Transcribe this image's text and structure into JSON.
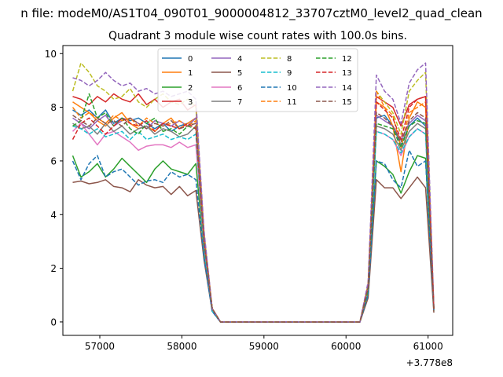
{
  "suptitle": "n file: modeM0/AS1T04_090T01_9000004812_33707cztM0_level2_quad_clean",
  "chart_data": {
    "type": "line",
    "title": "Quadrant 3 module wise count rates with 100.0s bins.",
    "xlabel": "",
    "ylabel": "",
    "x_offset_label": "+3.778e8",
    "xlim": [
      56550,
      61300
    ],
    "ylim": [
      -0.5,
      10.3
    ],
    "xticks": [
      57000,
      58000,
      59000,
      60000,
      61000
    ],
    "xtick_labels": [
      "57000",
      "58000",
      "59000",
      "60000",
      "61000"
    ],
    "yticks": [
      0,
      2,
      4,
      6,
      8,
      10
    ],
    "ytick_labels": [
      "0",
      "2",
      "4",
      "6",
      "8",
      "10"
    ],
    "grid": false,
    "legend": {
      "placement": "top-center",
      "ncol": 4
    },
    "x": [
      56670,
      56770,
      56870,
      56970,
      57070,
      57170,
      57270,
      57370,
      57470,
      57570,
      57670,
      57770,
      57870,
      57970,
      58070,
      58170,
      58270,
      58370,
      58470,
      58570,
      58670,
      58770,
      58870,
      58970,
      59070,
      59170,
      59270,
      59370,
      59470,
      59570,
      59670,
      59770,
      59870,
      59970,
      60070,
      60170,
      60270,
      60370,
      60470,
      60570,
      60670,
      60770,
      60870,
      60970,
      61070
    ],
    "series": [
      {
        "name": "0",
        "color": "#1f77b4",
        "dash": "solid",
        "values": [
          7.9,
          7.7,
          7.9,
          7.6,
          7.9,
          7.4,
          7.6,
          7.5,
          7.6,
          7.4,
          7.2,
          7.4,
          7.1,
          7.3,
          7.4,
          7.6,
          3.0,
          0.5,
          0.0,
          0.0,
          0.0,
          0.0,
          0.0,
          0.0,
          0.0,
          0.0,
          0.0,
          0.0,
          0.0,
          0.0,
          0.0,
          0.0,
          0.0,
          0.0,
          0.0,
          0.0,
          1.3,
          7.6,
          7.7,
          7.3,
          6.6,
          7.3,
          7.6,
          7.3,
          0.5
        ]
      },
      {
        "name": "1",
        "color": "#ff7f0e",
        "dash": "solid",
        "values": [
          8.2,
          8.0,
          7.8,
          7.5,
          7.3,
          7.6,
          7.8,
          7.4,
          7.2,
          7.3,
          7.1,
          7.4,
          7.6,
          7.2,
          7.4,
          7.6,
          3.1,
          0.5,
          0.0,
          0.0,
          0.0,
          0.0,
          0.0,
          0.0,
          0.0,
          0.0,
          0.0,
          0.0,
          0.0,
          0.0,
          0.0,
          0.0,
          0.0,
          0.0,
          0.0,
          0.0,
          1.3,
          8.2,
          8.0,
          7.3,
          5.6,
          7.6,
          8.2,
          8.0,
          0.5
        ]
      },
      {
        "name": "2",
        "color": "#2ca02c",
        "dash": "solid",
        "values": [
          6.2,
          5.4,
          5.6,
          5.9,
          5.4,
          5.7,
          6.1,
          5.8,
          5.5,
          5.2,
          5.7,
          6.0,
          5.7,
          5.6,
          5.5,
          5.9,
          2.6,
          0.4,
          0.0,
          0.0,
          0.0,
          0.0,
          0.0,
          0.0,
          0.0,
          0.0,
          0.0,
          0.0,
          0.0,
          0.0,
          0.0,
          0.0,
          0.0,
          0.0,
          0.0,
          0.0,
          1.1,
          6.0,
          5.8,
          5.5,
          4.8,
          5.6,
          6.2,
          6.1,
          0.4
        ]
      },
      {
        "name": "3",
        "color": "#d62728",
        "dash": "solid",
        "values": [
          8.4,
          8.3,
          8.1,
          8.4,
          8.2,
          8.5,
          8.3,
          8.2,
          8.5,
          8.1,
          8.3,
          8.0,
          8.2,
          8.3,
          7.9,
          8.1,
          3.3,
          0.5,
          0.0,
          0.0,
          0.0,
          0.0,
          0.0,
          0.0,
          0.0,
          0.0,
          0.0,
          0.0,
          0.0,
          0.0,
          0.0,
          0.0,
          0.0,
          0.0,
          0.0,
          0.0,
          1.4,
          8.4,
          8.2,
          8.0,
          7.3,
          8.1,
          8.3,
          8.4,
          0.5
        ]
      },
      {
        "name": "4",
        "color": "#9467bd",
        "dash": "solid",
        "values": [
          7.6,
          7.4,
          7.2,
          7.5,
          7.7,
          7.3,
          7.5,
          7.6,
          7.4,
          7.2,
          7.5,
          7.4,
          7.3,
          7.5,
          7.3,
          7.6,
          3.0,
          0.5,
          0.0,
          0.0,
          0.0,
          0.0,
          0.0,
          0.0,
          0.0,
          0.0,
          0.0,
          0.0,
          0.0,
          0.0,
          0.0,
          0.0,
          0.0,
          0.0,
          0.0,
          0.0,
          1.3,
          7.7,
          7.5,
          7.3,
          6.8,
          7.4,
          7.7,
          7.5,
          0.5
        ]
      },
      {
        "name": "5",
        "color": "#8c564b",
        "dash": "solid",
        "values": [
          5.2,
          5.25,
          5.15,
          5.2,
          5.3,
          5.05,
          5.0,
          4.85,
          5.3,
          5.1,
          5.0,
          5.05,
          4.75,
          5.05,
          4.7,
          4.9,
          2.3,
          0.4,
          0.0,
          0.0,
          0.0,
          0.0,
          0.0,
          0.0,
          0.0,
          0.0,
          0.0,
          0.0,
          0.0,
          0.0,
          0.0,
          0.0,
          0.0,
          0.0,
          0.0,
          0.0,
          0.9,
          5.3,
          5.0,
          5.0,
          4.6,
          5.0,
          5.4,
          5.0,
          0.35
        ]
      },
      {
        "name": "6",
        "color": "#e377c2",
        "dash": "solid",
        "values": [
          7.1,
          7.4,
          7.0,
          6.6,
          7.0,
          7.1,
          6.9,
          6.7,
          6.4,
          6.55,
          6.6,
          6.6,
          6.5,
          6.7,
          6.5,
          6.6,
          2.8,
          0.4,
          0.0,
          0.0,
          0.0,
          0.0,
          0.0,
          0.0,
          0.0,
          0.0,
          0.0,
          0.0,
          0.0,
          0.0,
          0.0,
          0.0,
          0.0,
          0.0,
          0.0,
          0.0,
          1.2,
          7.1,
          7.0,
          6.8,
          6.2,
          6.9,
          7.2,
          7.0,
          0.45
        ]
      },
      {
        "name": "7",
        "color": "#7f7f7f",
        "dash": "solid",
        "values": [
          7.4,
          7.2,
          7.3,
          7.0,
          7.4,
          7.1,
          7.3,
          7.0,
          7.2,
          7.3,
          7.0,
          7.2,
          7.1,
          6.9,
          7.0,
          7.3,
          2.9,
          0.5,
          0.0,
          0.0,
          0.0,
          0.0,
          0.0,
          0.0,
          0.0,
          0.0,
          0.0,
          0.0,
          0.0,
          0.0,
          0.0,
          0.0,
          0.0,
          0.0,
          0.0,
          0.0,
          1.2,
          7.3,
          7.2,
          7.0,
          6.4,
          7.1,
          7.4,
          7.2,
          0.45
        ]
      },
      {
        "name": "8",
        "color": "#bcbd22",
        "dash": "dashed",
        "values": [
          8.6,
          9.65,
          9.3,
          8.8,
          8.6,
          8.3,
          8.4,
          8.7,
          8.2,
          8.0,
          8.3,
          8.5,
          8.2,
          8.1,
          8.3,
          8.0,
          3.3,
          0.5,
          0.0,
          0.0,
          0.0,
          0.0,
          0.0,
          0.0,
          0.0,
          0.0,
          0.0,
          0.0,
          0.0,
          0.0,
          0.0,
          0.0,
          0.0,
          0.0,
          0.0,
          0.0,
          1.4,
          8.6,
          8.2,
          7.8,
          7.0,
          8.6,
          9.0,
          9.3,
          0.5
        ]
      },
      {
        "name": "9",
        "color": "#17becf",
        "dash": "dashed",
        "values": [
          7.3,
          7.2,
          7.0,
          7.2,
          6.9,
          7.0,
          7.1,
          6.8,
          7.1,
          6.8,
          6.9,
          7.0,
          6.8,
          6.9,
          6.8,
          7.0,
          2.8,
          0.4,
          0.0,
          0.0,
          0.0,
          0.0,
          0.0,
          0.0,
          0.0,
          0.0,
          0.0,
          0.0,
          0.0,
          0.0,
          0.0,
          0.0,
          0.0,
          0.0,
          0.0,
          0.0,
          1.2,
          7.1,
          7.0,
          6.8,
          6.3,
          6.9,
          7.2,
          7.0,
          0.45
        ]
      },
      {
        "name": "10",
        "color": "#1f77b4",
        "dash": "dashed",
        "values": [
          6.0,
          5.3,
          5.9,
          6.2,
          5.4,
          5.6,
          5.7,
          5.4,
          5.1,
          5.25,
          5.3,
          5.2,
          5.6,
          5.4,
          5.5,
          5.3,
          2.4,
          0.4,
          0.0,
          0.0,
          0.0,
          0.0,
          0.0,
          0.0,
          0.0,
          0.0,
          0.0,
          0.0,
          0.0,
          0.0,
          0.0,
          0.0,
          0.0,
          0.0,
          0.0,
          0.0,
          1.0,
          6.0,
          5.9,
          5.3,
          5.0,
          6.4,
          5.8,
          6.0,
          0.45
        ]
      },
      {
        "name": "11",
        "color": "#ff7f0e",
        "dash": "dashed",
        "values": [
          8.0,
          7.6,
          7.8,
          7.6,
          7.4,
          7.7,
          7.5,
          7.6,
          7.3,
          7.6,
          7.4,
          7.3,
          7.4,
          7.5,
          7.3,
          7.5,
          3.1,
          0.5,
          0.0,
          0.0,
          0.0,
          0.0,
          0.0,
          0.0,
          0.0,
          0.0,
          0.0,
          0.0,
          0.0,
          0.0,
          0.0,
          0.0,
          0.0,
          0.0,
          0.0,
          0.0,
          1.3,
          8.6,
          8.0,
          7.7,
          6.5,
          7.8,
          8.0,
          8.2,
          0.5
        ]
      },
      {
        "name": "12",
        "color": "#2ca02c",
        "dash": "dashed",
        "values": [
          7.3,
          7.5,
          8.5,
          7.6,
          7.8,
          7.3,
          7.6,
          7.2,
          7.0,
          7.4,
          7.6,
          7.1,
          7.2,
          7.0,
          7.3,
          7.2,
          3.0,
          0.5,
          0.0,
          0.0,
          0.0,
          0.0,
          0.0,
          0.0,
          0.0,
          0.0,
          0.0,
          0.0,
          0.0,
          0.0,
          0.0,
          0.0,
          0.0,
          0.0,
          0.0,
          0.0,
          1.2,
          7.4,
          7.3,
          7.2,
          6.5,
          7.3,
          7.5,
          7.4,
          0.5
        ]
      },
      {
        "name": "13",
        "color": "#d62728",
        "dash": "dashed",
        "values": [
          6.8,
          7.4,
          7.6,
          7.3,
          7.0,
          7.3,
          7.6,
          7.4,
          7.3,
          7.5,
          7.1,
          7.4,
          7.3,
          7.2,
          7.4,
          7.2,
          3.0,
          0.5,
          0.0,
          0.0,
          0.0,
          0.0,
          0.0,
          0.0,
          0.0,
          0.0,
          0.0,
          0.0,
          0.0,
          0.0,
          0.0,
          0.0,
          0.0,
          0.0,
          0.0,
          0.0,
          1.3,
          8.2,
          7.9,
          7.6,
          6.8,
          8.0,
          8.3,
          8.4,
          0.5
        ]
      },
      {
        "name": "14",
        "color": "#9467bd",
        "dash": "dashed",
        "values": [
          9.1,
          9.0,
          8.8,
          9.0,
          9.3,
          9.0,
          8.8,
          8.9,
          8.6,
          8.7,
          8.5,
          8.6,
          8.4,
          8.5,
          8.6,
          8.3,
          3.4,
          0.5,
          0.0,
          0.0,
          0.0,
          0.0,
          0.0,
          0.0,
          0.0,
          0.0,
          0.0,
          0.0,
          0.0,
          0.0,
          0.0,
          0.0,
          0.0,
          0.0,
          0.0,
          0.0,
          1.5,
          9.2,
          8.6,
          8.3,
          7.4,
          8.9,
          9.4,
          9.65,
          0.6
        ]
      },
      {
        "name": "15",
        "color": "#8c564b",
        "dash": "dashed",
        "values": [
          7.7,
          7.5,
          7.3,
          7.6,
          7.4,
          7.5,
          7.3,
          7.6,
          7.4,
          7.2,
          7.4,
          7.3,
          7.5,
          7.2,
          7.3,
          7.4,
          3.0,
          0.5,
          0.0,
          0.0,
          0.0,
          0.0,
          0.0,
          0.0,
          0.0,
          0.0,
          0.0,
          0.0,
          0.0,
          0.0,
          0.0,
          0.0,
          0.0,
          0.0,
          0.0,
          0.0,
          1.3,
          7.8,
          7.6,
          7.3,
          6.7,
          7.5,
          7.8,
          7.6,
          0.5
        ]
      }
    ]
  }
}
